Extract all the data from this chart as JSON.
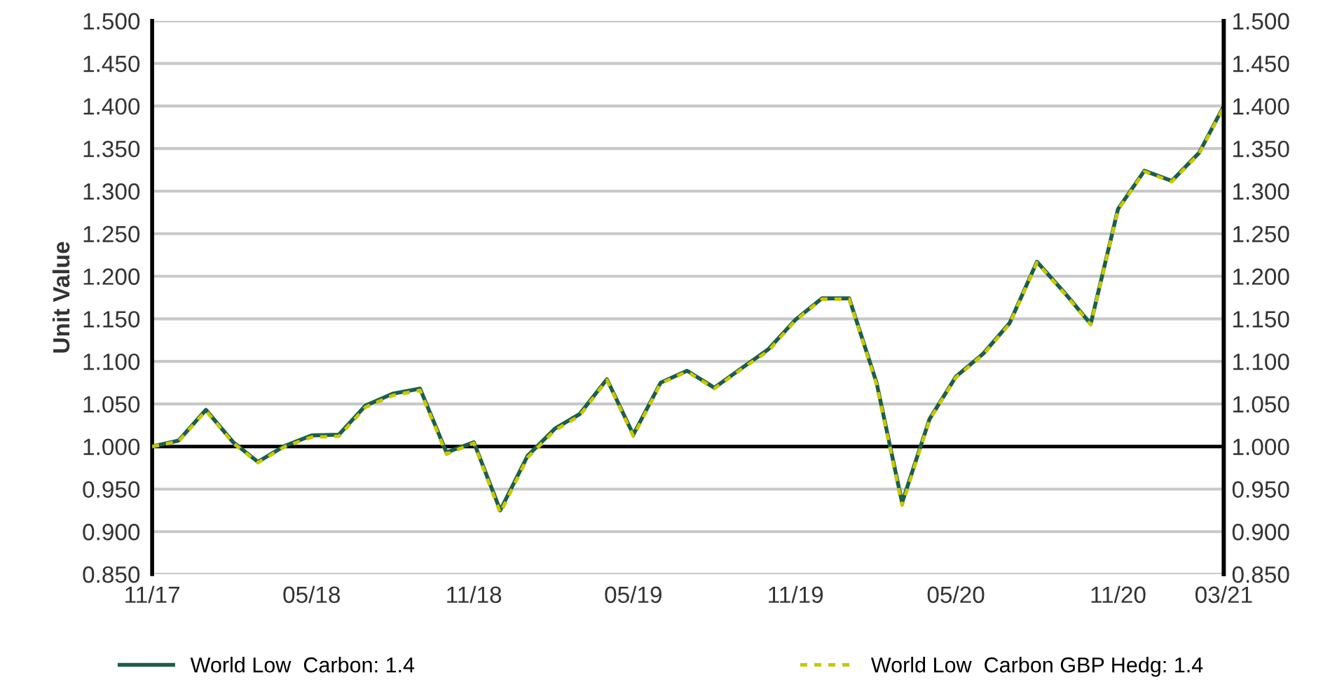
{
  "chart_data": {
    "type": "line",
    "ylabel": "Unit Value",
    "x": [
      "2017-11",
      "2017-12",
      "2018-01",
      "2018-02",
      "2018-03",
      "2018-04",
      "2018-05",
      "2018-06",
      "2018-07",
      "2018-08",
      "2018-09",
      "2018-10",
      "2018-11",
      "2018-12",
      "2019-01",
      "2019-02",
      "2019-03",
      "2019-04",
      "2019-05",
      "2019-06",
      "2019-07",
      "2019-08",
      "2019-09",
      "2019-10",
      "2019-11",
      "2019-12",
      "2020-01",
      "2020-02",
      "2020-03",
      "2020-04",
      "2020-05",
      "2020-06",
      "2020-07",
      "2020-08",
      "2020-09",
      "2020-10",
      "2020-11",
      "2020-12",
      "2021-01",
      "2021-02",
      "2021-03"
    ],
    "series": [
      {
        "name": "World Low  Carbon: 1.4",
        "color": "#1b5e4b",
        "line_style": "solid",
        "values": [
          1.0,
          1.007,
          1.043,
          1.005,
          0.982,
          1.001,
          1.013,
          1.014,
          1.048,
          1.062,
          1.068,
          0.993,
          1.005,
          0.925,
          0.989,
          1.021,
          1.038,
          1.079,
          1.014,
          1.075,
          1.089,
          1.069,
          1.092,
          1.114,
          1.149,
          1.174,
          1.174,
          1.075,
          0.934,
          1.032,
          1.082,
          1.109,
          1.145,
          1.217,
          1.181,
          1.144,
          1.279,
          1.324,
          1.312,
          1.345,
          1.4
        ]
      },
      {
        "name": "World Low  Carbon GBP Hedg: 1.4",
        "color": "#c8c800",
        "line_style": "dotted",
        "values": [
          1.0,
          1.006,
          1.042,
          1.004,
          0.981,
          1.0,
          1.011,
          1.012,
          1.046,
          1.06,
          1.066,
          0.991,
          1.004,
          0.922,
          0.987,
          1.019,
          1.036,
          1.078,
          1.012,
          1.074,
          1.088,
          1.068,
          1.091,
          1.112,
          1.148,
          1.173,
          1.173,
          1.073,
          0.931,
          1.031,
          1.081,
          1.108,
          1.144,
          1.216,
          1.18,
          1.143,
          1.278,
          1.323,
          1.311,
          1.344,
          1.399
        ]
      }
    ],
    "xlim": [
      "2017-11",
      "2021-03"
    ],
    "xticks": [
      {
        "value": "2017-11",
        "label": "11/17"
      },
      {
        "value": "2018-05",
        "label": "05/18"
      },
      {
        "value": "2018-11",
        "label": "11/18"
      },
      {
        "value": "2019-05",
        "label": "05/19"
      },
      {
        "value": "2019-11",
        "label": "11/19"
      },
      {
        "value": "2020-05",
        "label": "05/20"
      },
      {
        "value": "2020-11",
        "label": "11/20"
      },
      {
        "value": "2021-03",
        "label": "03/21"
      }
    ],
    "ylim": [
      0.85,
      1.5
    ],
    "yticks": [
      {
        "value": 0.85,
        "label": "0.850"
      },
      {
        "value": 0.9,
        "label": "0.900"
      },
      {
        "value": 0.95,
        "label": "0.950"
      },
      {
        "value": 1.0,
        "label": "1.000"
      },
      {
        "value": 1.05,
        "label": "1.050"
      },
      {
        "value": 1.1,
        "label": "1.100"
      },
      {
        "value": 1.15,
        "label": "1.150"
      },
      {
        "value": 1.2,
        "label": "1.200"
      },
      {
        "value": 1.25,
        "label": "1.250"
      },
      {
        "value": 1.3,
        "label": "1.300"
      },
      {
        "value": 1.35,
        "label": "1.350"
      },
      {
        "value": 1.4,
        "label": "1.400"
      },
      {
        "value": 1.45,
        "label": "1.450"
      },
      {
        "value": 1.5,
        "label": "1.500"
      }
    ],
    "y2lim": [
      0.85,
      1.5
    ],
    "y2ticks": [
      {
        "value": 0.85,
        "label": "0.850"
      },
      {
        "value": 0.9,
        "label": "0.900"
      },
      {
        "value": 0.95,
        "label": "0.950"
      },
      {
        "value": 1.0,
        "label": "1.000"
      },
      {
        "value": 1.05,
        "label": "1.050"
      },
      {
        "value": 1.1,
        "label": "1.100"
      },
      {
        "value": 1.15,
        "label": "1.150"
      },
      {
        "value": 1.2,
        "label": "1.200"
      },
      {
        "value": 1.25,
        "label": "1.250"
      },
      {
        "value": 1.3,
        "label": "1.300"
      },
      {
        "value": 1.35,
        "label": "1.350"
      },
      {
        "value": 1.4,
        "label": "1.400"
      },
      {
        "value": 1.45,
        "label": "1.450"
      },
      {
        "value": 1.5,
        "label": "1.500"
      }
    ],
    "ref_lines": [
      {
        "axis": "y",
        "value": 1.0,
        "color": "#000000",
        "line_style": "solid"
      }
    ],
    "grid": "y",
    "legend": "bottom",
    "marker": "none"
  }
}
